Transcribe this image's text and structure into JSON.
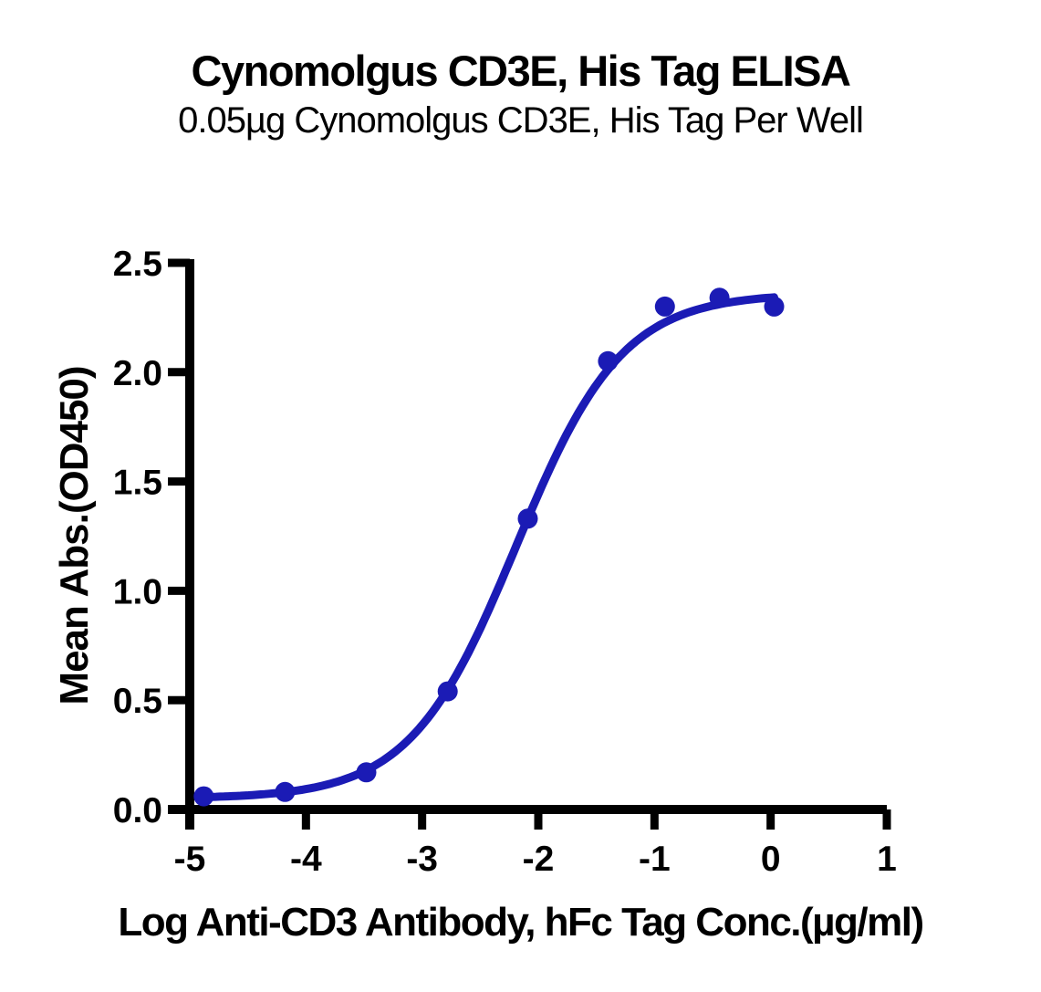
{
  "page": {
    "background": "#ffffff",
    "text_color": "#000000"
  },
  "chart_data": {
    "type": "scatter",
    "title": "Cynomolgus CD3E, His Tag ELISA",
    "subtitle": "0.05µg Cynomolgus CD3E, His Tag Per Well",
    "xlabel": "Log Anti-CD3 Antibody, hFc Tag Conc.(µg/ml)",
    "ylabel": "Mean Abs.(OD450)",
    "xlim": [
      -5,
      1
    ],
    "ylim": [
      0,
      2.5
    ],
    "grid": false,
    "legend": "none",
    "x_ticks": [
      {
        "value": -5,
        "label": "-5"
      },
      {
        "value": -4,
        "label": "-4"
      },
      {
        "value": -3,
        "label": "-3"
      },
      {
        "value": -2,
        "label": "-2"
      },
      {
        "value": -1,
        "label": "-1"
      },
      {
        "value": 0,
        "label": "0"
      },
      {
        "value": 1,
        "label": "1"
      }
    ],
    "y_ticks": [
      {
        "value": 0.0,
        "label": "0.0"
      },
      {
        "value": 0.5,
        "label": "0.5"
      },
      {
        "value": 1.0,
        "label": "1.0"
      },
      {
        "value": 1.5,
        "label": "1.5"
      },
      {
        "value": 2.0,
        "label": "2.0"
      },
      {
        "value": 2.5,
        "label": "2.5"
      }
    ],
    "style": {
      "curve_color": "#1B1BB5",
      "marker_color": "#1B1BB5",
      "axis_color": "#000000"
    },
    "series": [
      {
        "name": "Anti-CD3 Antibody, hFc Tag",
        "points": [
          {
            "x": -4.88,
            "y": 0.06
          },
          {
            "x": -4.18,
            "y": 0.08
          },
          {
            "x": -3.48,
            "y": 0.17
          },
          {
            "x": -2.78,
            "y": 0.54
          },
          {
            "x": -2.09,
            "y": 1.33
          },
          {
            "x": -1.4,
            "y": 2.05
          },
          {
            "x": -0.91,
            "y": 2.3
          },
          {
            "x": -0.44,
            "y": 2.34
          },
          {
            "x": 0.03,
            "y": 2.3
          }
        ],
        "fit_curve": {
          "model": "4PL",
          "bottom": 0.05,
          "top": 2.36,
          "logEC50": -2.19,
          "hill": 0.95,
          "x_start": -4.88,
          "x_end": 0.03
        }
      }
    ]
  }
}
